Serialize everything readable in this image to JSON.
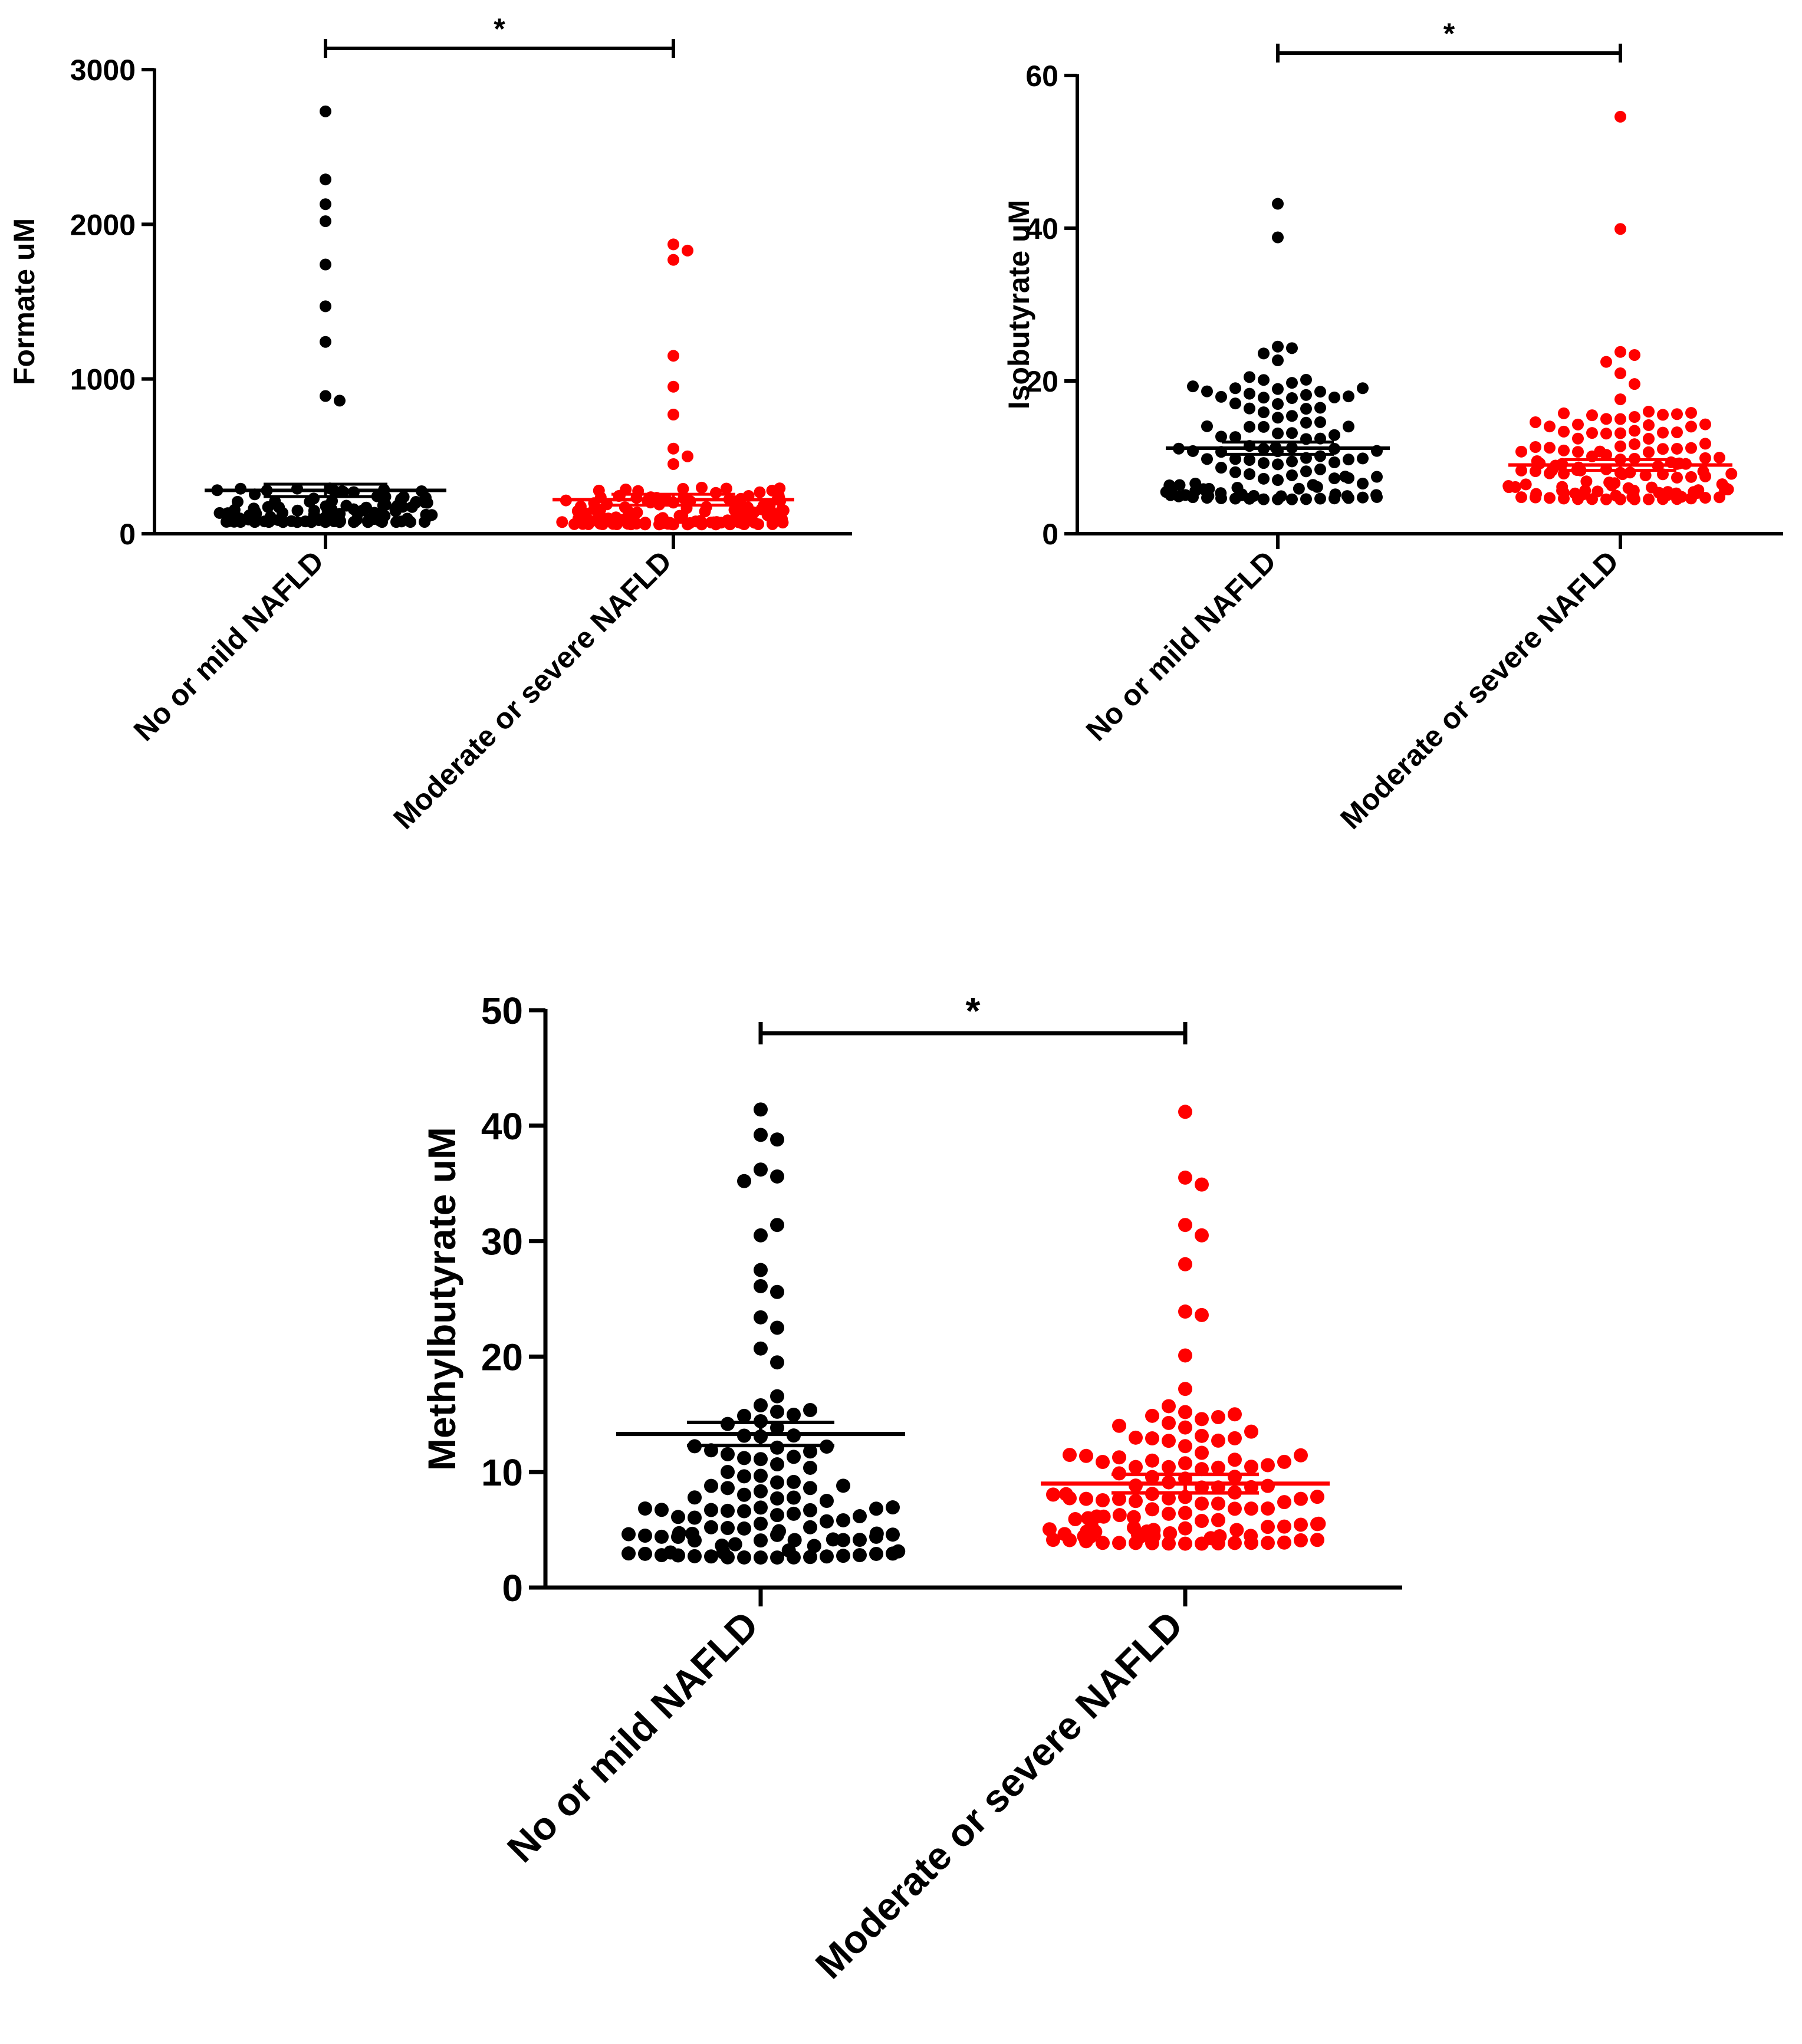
{
  "figure": {
    "background": "#ffffff"
  },
  "chart_data": [
    {
      "type": "scatter",
      "subtype": "dot-plot",
      "title": "",
      "xlabel": "",
      "ylabel": "Formate uM",
      "ylim": [
        0,
        3000
      ],
      "yticks": [
        0,
        1000,
        2000,
        3000
      ],
      "categories": [
        "No or mild NAFLD",
        "Moderate or severe NAFLD"
      ],
      "significance": {
        "label": "*",
        "between": [
          0,
          1
        ]
      },
      "series": [
        {
          "name": "No or mild NAFLD",
          "color": "#000000",
          "mean": 280,
          "sem_upper": 320,
          "sem_lower": 240,
          "outliers": [
            2730,
            2290,
            2130,
            2020,
            1740,
            1470,
            1240,
            890,
            860
          ],
          "bulk": {
            "n": 115,
            "min": 75,
            "max": 300
          }
        },
        {
          "name": "Moderate or severe NAFLD",
          "color": "#ff0000",
          "mean": 220,
          "sem_upper": 255,
          "sem_lower": 185,
          "outliers": [
            1870,
            1830,
            1770,
            1150,
            950,
            770,
            550,
            500,
            450
          ],
          "bulk": {
            "n": 125,
            "min": 60,
            "max": 300
          }
        }
      ]
    },
    {
      "type": "scatter",
      "subtype": "dot-plot",
      "title": "",
      "xlabel": "",
      "ylabel": "Isobutyrate uM",
      "ylim": [
        0,
        60
      ],
      "yticks": [
        0,
        20,
        40,
        60
      ],
      "categories": [
        "No or mild NAFLD",
        "Moderate or severe NAFLD"
      ],
      "significance": {
        "label": "*",
        "between": [
          0,
          1
        ]
      },
      "series": [
        {
          "name": "No or mild NAFLD",
          "color": "#000000",
          "mean": 11.2,
          "sem_upper": 12.0,
          "sem_lower": 10.4,
          "outliers": [
            43.2,
            38.8,
            24.5,
            24.3,
            23.6,
            22.7
          ],
          "bulk": {
            "n": 110,
            "min": 4.5,
            "max": 21
          }
        },
        {
          "name": "Moderate or severe NAFLD",
          "color": "#ff0000",
          "mean": 9.0,
          "sem_upper": 9.7,
          "sem_lower": 8.3,
          "outliers": [
            54.6,
            39.9,
            23.8,
            23.4,
            22.5,
            21.0,
            19.6,
            17.6
          ],
          "bulk": {
            "n": 120,
            "min": 4.5,
            "max": 16
          }
        }
      ]
    },
    {
      "type": "scatter",
      "subtype": "dot-plot",
      "title": "",
      "xlabel": "",
      "ylabel": "Methylbutyrate uM",
      "ylim": [
        0,
        50
      ],
      "yticks": [
        0,
        10,
        20,
        30,
        40,
        50
      ],
      "categories": [
        "No or mild NAFLD",
        "Moderate or severe NAFLD"
      ],
      "significance": {
        "label": "*",
        "between": [
          0,
          1
        ]
      },
      "series": [
        {
          "name": "No or mild NAFLD",
          "color": "#000000",
          "mean": 13.3,
          "sem_upper": 14.3,
          "sem_lower": 12.3,
          "outliers": [
            41.4,
            39.2,
            38.8,
            36.2,
            35.6,
            35.2,
            30.5,
            31.4,
            27.5,
            26.1,
            25.6,
            23.4,
            22.5,
            20.7,
            19.5
          ],
          "bulk": {
            "n": 100,
            "min": 2.6,
            "max": 17
          }
        },
        {
          "name": "Moderate or severe NAFLD",
          "color": "#ff0000",
          "mean": 9.0,
          "sem_upper": 9.8,
          "sem_lower": 8.2,
          "outliers": [
            41.2,
            35.5,
            34.9,
            31.4,
            30.5,
            28.0,
            23.9,
            23.6,
            20.1,
            17.2
          ],
          "bulk": {
            "n": 115,
            "min": 3.8,
            "max": 16
          }
        }
      ]
    }
  ]
}
